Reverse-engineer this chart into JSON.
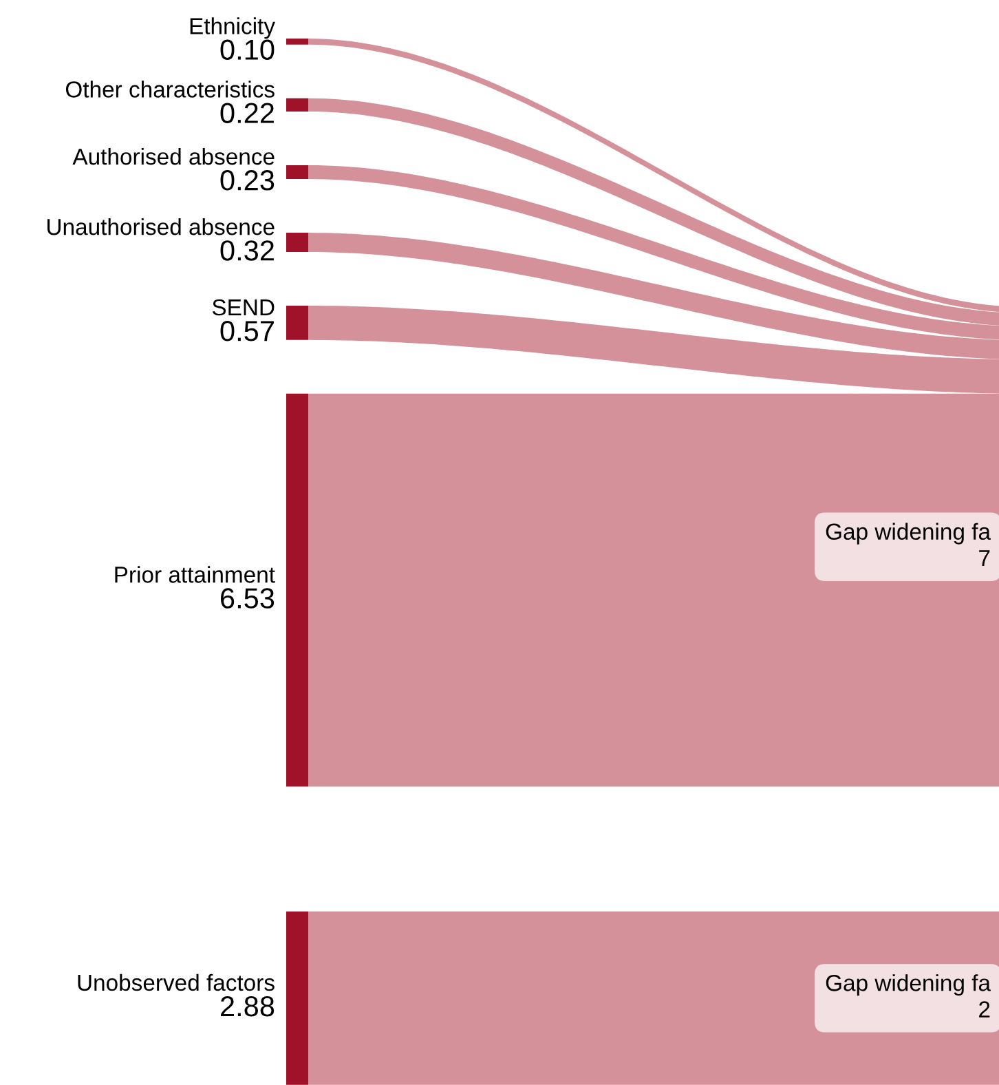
{
  "chart_data": {
    "type": "other",
    "categories": [
      "Ethnicity",
      "Other characteristics",
      "Authorised absence",
      "Unauthorised absence",
      "SEND",
      "Prior attainment",
      "Unobserved factors"
    ],
    "values": [
      0.1,
      0.22,
      0.23,
      0.32,
      0.57,
      6.53,
      2.88
    ],
    "value_labels": [
      "0.10",
      "0.22",
      "0.23",
      "0.32",
      "0.57",
      "6.53",
      "2.88"
    ],
    "color": "#a0112a",
    "colors": [
      "#d4919a",
      "#d4919a",
      "#d4919a",
      "#d4919a",
      "#d4919a",
      "#d4919a",
      "#d4919a"
    ],
    "annotations": [
      "Gap widening fa\n7",
      "Gap widening fa\n2"
    ]
  }
}
